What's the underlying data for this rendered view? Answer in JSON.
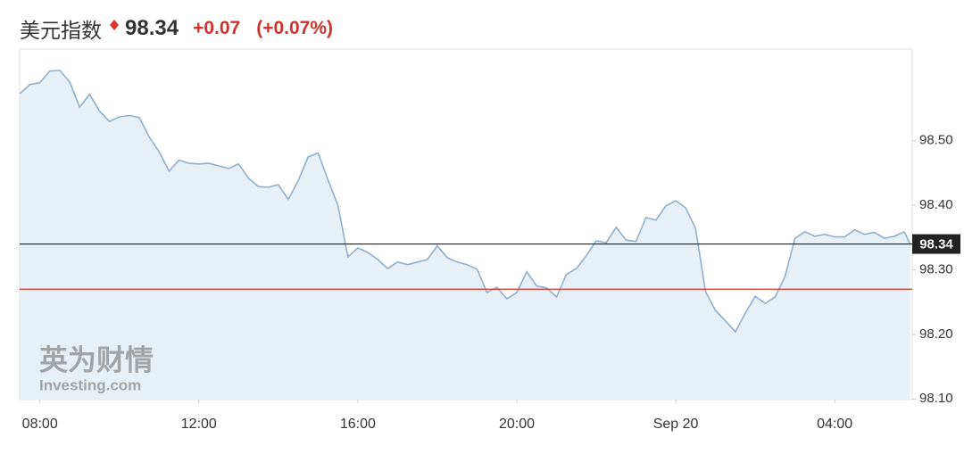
{
  "header": {
    "title": "美元指数",
    "change": "+0.07",
    "change_pct": "(+0.07%)"
  },
  "watermark": {
    "brand": "英为财情",
    "site": "Investing.com"
  },
  "chart_data": {
    "type": "area",
    "last_price": 98.34,
    "previous_close": 98.27,
    "x": [
      7.5,
      7.75,
      8,
      8.25,
      8.5,
      8.75,
      9,
      9.25,
      9.5,
      9.75,
      10,
      10.25,
      10.5,
      10.75,
      11,
      11.25,
      11.5,
      11.75,
      12,
      12.25,
      12.5,
      12.75,
      13,
      13.25,
      13.5,
      13.75,
      14,
      14.25,
      14.5,
      14.75,
      15,
      15.25,
      15.5,
      15.75,
      16,
      16.25,
      16.5,
      16.75,
      17,
      17.25,
      17.5,
      17.75,
      18,
      18.25,
      18.5,
      18.75,
      19,
      19.25,
      19.5,
      19.75,
      20,
      20.25,
      20.5,
      20.75,
      21,
      21.25,
      21.5,
      21.75,
      22,
      22.25,
      22.5,
      22.75,
      23,
      23.25,
      23.5,
      23.75,
      24,
      24.25,
      24.5,
      24.75,
      25,
      25.25,
      25.5,
      25.75,
      26,
      26.25,
      26.5,
      26.75,
      27,
      27.25,
      27.5,
      27.75,
      28,
      28.25,
      28.5,
      28.75,
      29,
      29.25,
      29.5,
      29.75,
      29.9
    ],
    "series": [
      {
        "name": "美元指数",
        "color": "#8eb0d0",
        "fill": "#e8f0f7",
        "values": [
          98.573,
          98.587,
          98.59,
          98.608,
          98.609,
          98.591,
          98.552,
          98.572,
          98.546,
          98.53,
          98.537,
          98.539,
          98.536,
          98.506,
          98.483,
          98.453,
          98.47,
          98.465,
          98.464,
          98.465,
          98.461,
          98.457,
          98.464,
          98.442,
          98.429,
          98.428,
          98.432,
          98.409,
          98.438,
          98.475,
          98.481,
          98.439,
          98.4,
          98.32,
          98.334,
          98.327,
          98.316,
          98.302,
          98.312,
          98.308,
          98.312,
          98.316,
          98.337,
          98.319,
          98.312,
          98.308,
          98.301,
          98.265,
          98.273,
          98.255,
          98.265,
          98.297,
          98.275,
          98.272,
          98.258,
          98.293,
          98.302,
          98.322,
          98.345,
          98.342,
          98.366,
          98.346,
          98.344,
          98.381,
          98.377,
          98.399,
          98.407,
          98.396,
          98.364,
          98.266,
          98.237,
          98.221,
          98.204,
          98.233,
          98.259,
          98.248,
          98.258,
          98.29,
          98.349,
          98.359,
          98.352,
          98.355,
          98.351,
          98.351,
          98.362,
          98.355,
          98.358,
          98.349,
          98.352,
          98.359,
          98.34
        ]
      }
    ],
    "xlim": [
      7.49,
      29.95
    ],
    "ylim": [
      98.099,
      98.642
    ],
    "xticks": [
      {
        "value": 8,
        "label": "08:00"
      },
      {
        "value": 12,
        "label": "12:00"
      },
      {
        "value": 16,
        "label": "16:00"
      },
      {
        "value": 20,
        "label": "20:00"
      },
      {
        "value": 24,
        "label": "Sep 20"
      },
      {
        "value": 28,
        "label": "04:00"
      }
    ],
    "yticks": [
      {
        "value": 98.1,
        "label": "98.10"
      },
      {
        "value": 98.2,
        "label": "98.20"
      },
      {
        "value": 98.3,
        "label": "98.30"
      },
      {
        "value": 98.4,
        "label": "98.40"
      },
      {
        "value": 98.5,
        "label": "98.50"
      }
    ],
    "last_line_color": "#222222",
    "close_line_color": "#d0322c"
  }
}
